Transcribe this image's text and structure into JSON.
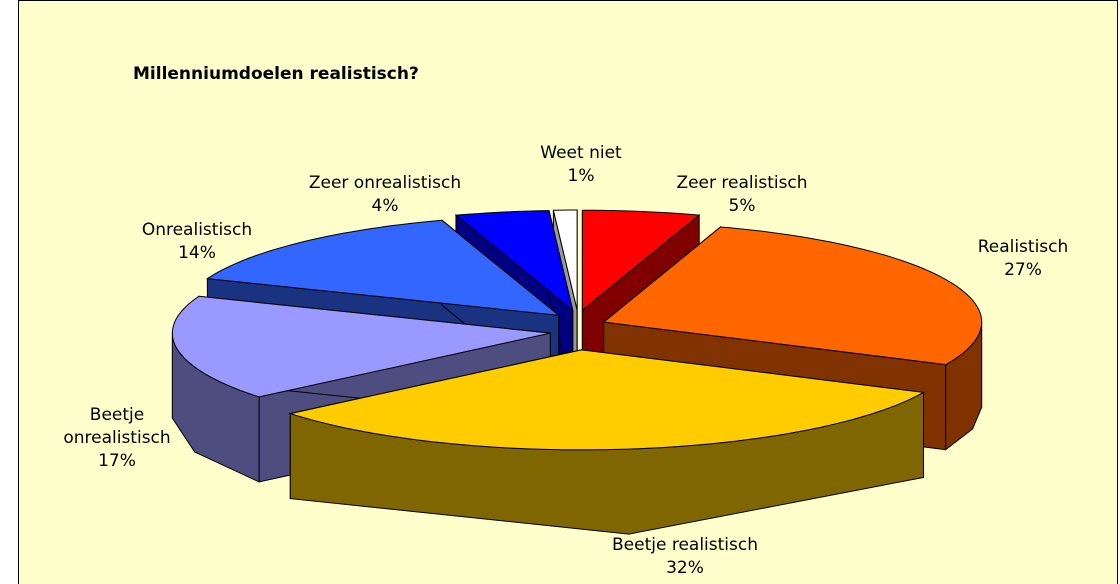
{
  "chart_data": {
    "type": "pie3d",
    "title": "Millenniumdoelen realistisch?",
    "categories": [
      "Zeer realistisch",
      "Realistisch",
      "Beetje realistisch",
      "Beetje onrealistisch",
      "Onrealistisch",
      "Zeer onrealistisch",
      "Weet niet"
    ],
    "values": [
      5,
      27,
      32,
      17,
      14,
      4,
      1
    ],
    "value_labels": [
      "5%",
      "27%",
      "32%",
      "17%",
      "14%",
      "4%",
      "1%"
    ],
    "colors": [
      "#ff0000",
      "#ff6600",
      "#ffcc00",
      "#9999ff",
      "#3366ff",
      "#0000ff",
      "#ffffff"
    ]
  }
}
